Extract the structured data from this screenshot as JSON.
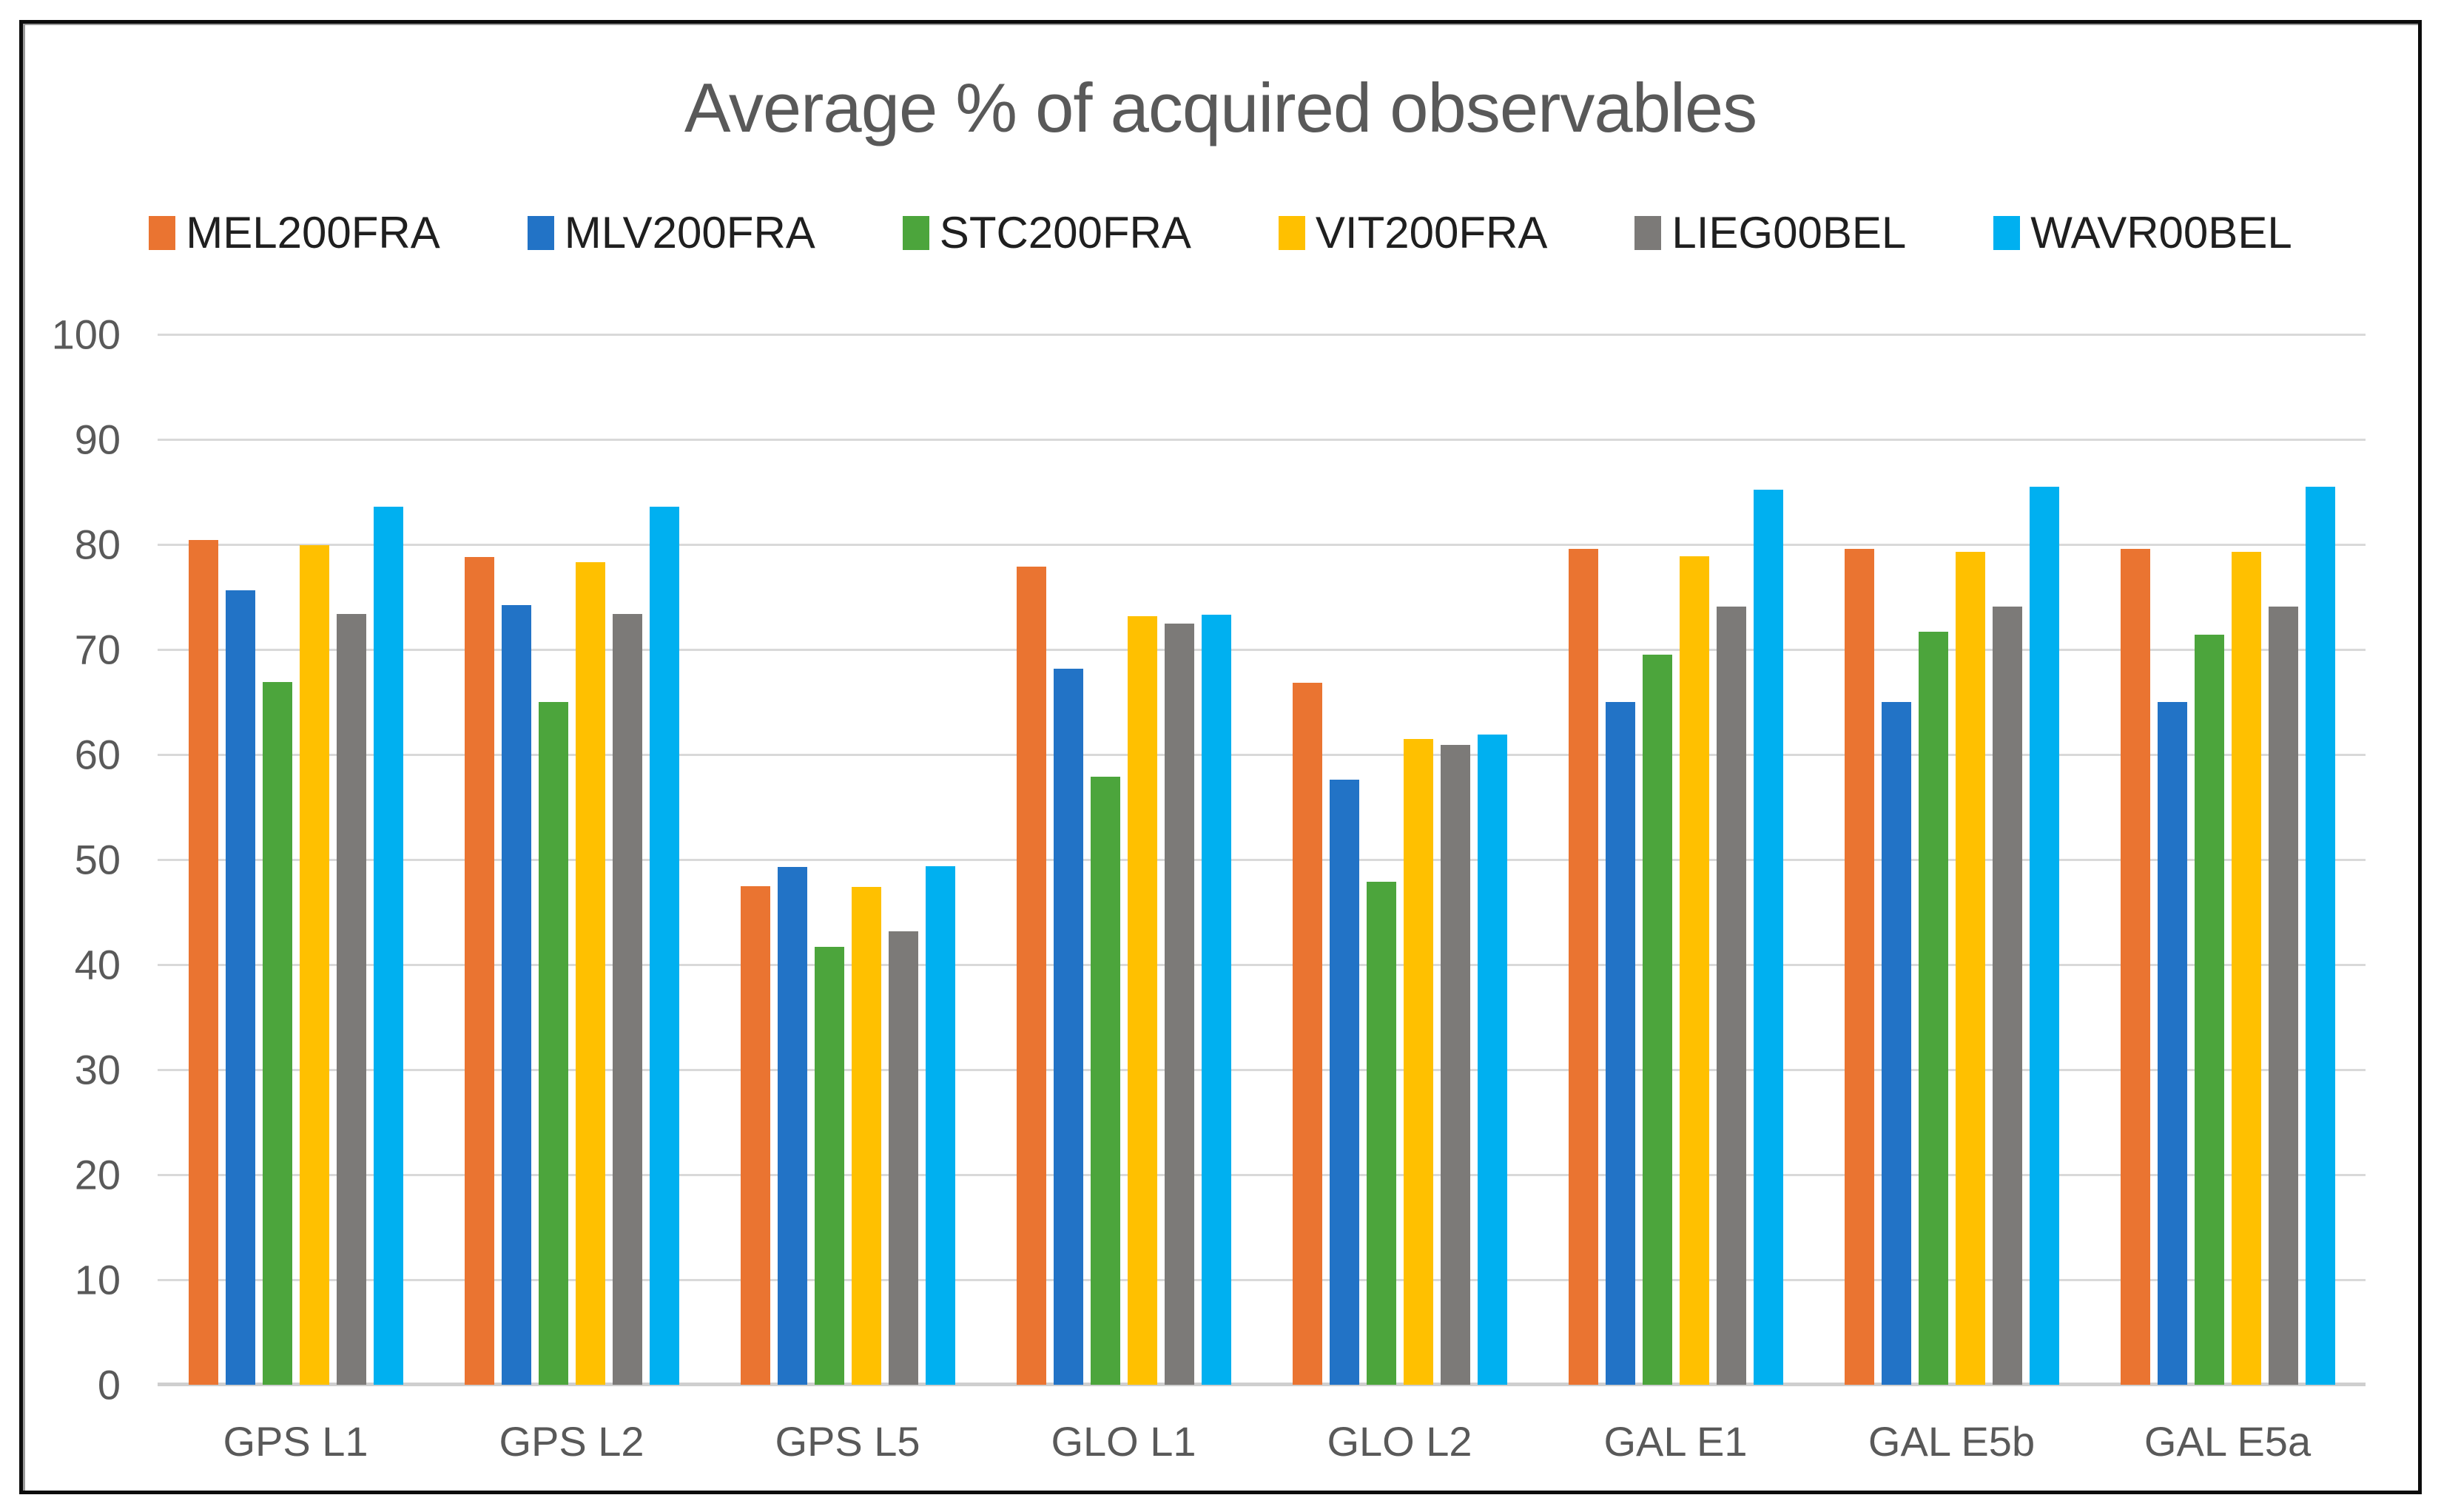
{
  "chart_data": {
    "type": "bar",
    "title": "Average % of acquired observables",
    "categories": [
      "GPS L1",
      "GPS L2",
      "GPS L5",
      "GLO L1",
      "GLO L2",
      "GAL E1",
      "GAL E5b",
      "GAL E5a"
    ],
    "series": [
      {
        "name": "MEL200FRA",
        "color": "#EA7431",
        "values": [
          80.4,
          78.8,
          47.5,
          77.9,
          66.8,
          79.6,
          79.6,
          79.6
        ]
      },
      {
        "name": "MLV200FRA",
        "color": "#2273C6",
        "values": [
          75.6,
          74.2,
          49.3,
          68.2,
          57.6,
          65.0,
          65.0,
          65.0
        ]
      },
      {
        "name": "STC200FRA",
        "color": "#4CA53C",
        "values": [
          66.9,
          65.0,
          41.7,
          57.9,
          47.9,
          69.5,
          71.7,
          71.4
        ]
      },
      {
        "name": "VIT200FRA",
        "color": "#FFC000",
        "values": [
          79.9,
          78.3,
          47.4,
          73.2,
          61.5,
          78.9,
          79.3,
          79.3
        ]
      },
      {
        "name": "LIEG00BEL",
        "color": "#7C7A78",
        "values": [
          73.4,
          73.4,
          43.2,
          72.5,
          60.9,
          74.1,
          74.1,
          74.1
        ]
      },
      {
        "name": "WAVR00BEL",
        "color": "#00B0F0",
        "values": [
          83.6,
          83.6,
          49.4,
          73.3,
          61.9,
          85.2,
          85.5,
          85.5
        ]
      }
    ],
    "xlabel": "",
    "ylabel": "",
    "ylim": [
      0,
      100
    ],
    "yticks": [
      0,
      10,
      20,
      30,
      40,
      50,
      60,
      70,
      80,
      90,
      100
    ],
    "grid": true,
    "legend_position": "top",
    "colors_meta": {
      "title_text": "#595959",
      "axis_text": "#595959",
      "legend_text": "#1f1f1f",
      "gridline": "#d9d9d9",
      "axis_line": "#cfcfcf",
      "frame_border": "#0c0c0c",
      "background": "#ffffff"
    }
  }
}
